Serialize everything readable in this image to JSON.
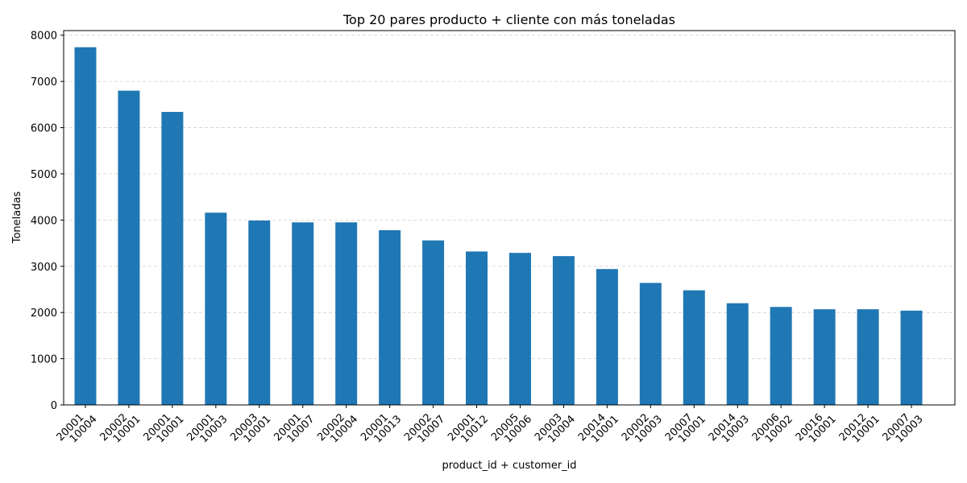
{
  "chart_data": {
    "type": "bar",
    "title": "Top 20 pares producto + cliente con más toneladas",
    "xlabel": "product_id + customer_id",
    "ylabel": "Toneladas",
    "categories": [
      [
        "20001",
        "10004"
      ],
      [
        "20002",
        "10001"
      ],
      [
        "20001",
        "10001"
      ],
      [
        "20001",
        "10003"
      ],
      [
        "20003",
        "10001"
      ],
      [
        "20001",
        "10007"
      ],
      [
        "20002",
        "10004"
      ],
      [
        "20001",
        "10013"
      ],
      [
        "20002",
        "10007"
      ],
      [
        "20001",
        "10012"
      ],
      [
        "20005",
        "10006"
      ],
      [
        "20003",
        "10004"
      ],
      [
        "20014",
        "10001"
      ],
      [
        "20002",
        "10003"
      ],
      [
        "20007",
        "10001"
      ],
      [
        "20014",
        "10003"
      ],
      [
        "20006",
        "10002"
      ],
      [
        "20016",
        "10001"
      ],
      [
        "20012",
        "10001"
      ],
      [
        "20007",
        "10003"
      ]
    ],
    "values": [
      7740,
      6800,
      6340,
      4160,
      3990,
      3950,
      3950,
      3780,
      3560,
      3320,
      3290,
      3220,
      2940,
      2640,
      2480,
      2200,
      2120,
      2070,
      2070,
      2040
    ],
    "ylim": [
      0,
      8100
    ],
    "yticks": [
      0,
      1000,
      2000,
      3000,
      4000,
      5000,
      6000,
      7000,
      8000
    ],
    "grid": "y",
    "bar_color": "#1f77b4"
  }
}
